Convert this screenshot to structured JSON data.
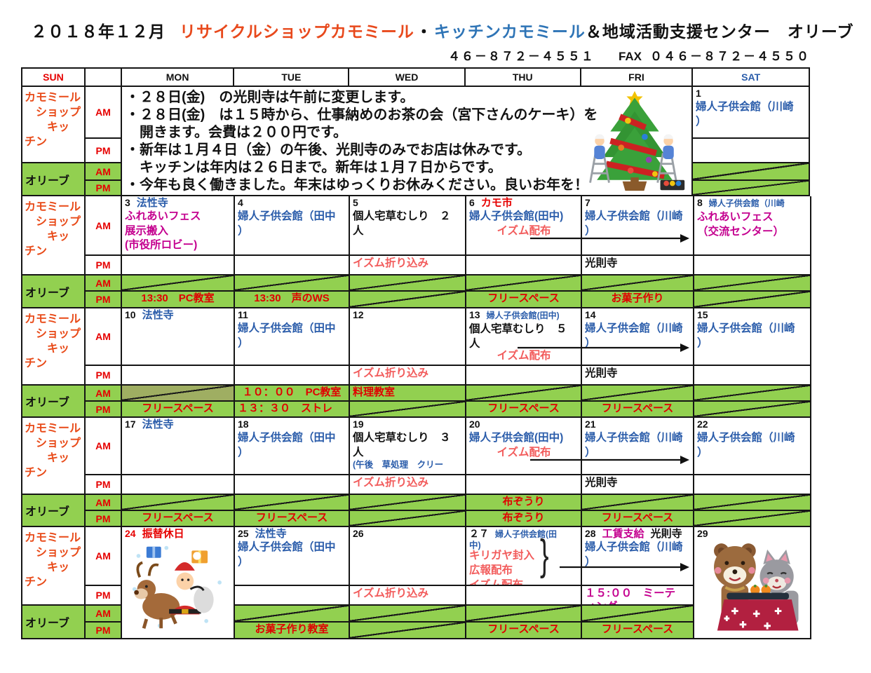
{
  "header": {
    "month_title": "２０１８年１２月",
    "title_recycle": "リサイクルショップカモミール",
    "title_sep": "・",
    "title_kitchen": "キッチンカモミール",
    "title_rest": "＆地域活動支援センター　オリーブ",
    "phone": "４６－８７２－４５５１",
    "fax_label": "FAX",
    "fax_number": "０４６－８７２－４５５０"
  },
  "day_headers": [
    "SUN",
    "",
    "MON",
    "TUE",
    "WED",
    "THU",
    "FRI",
    "SAT"
  ],
  "legend": {
    "shop_lines": [
      "カモミール",
      "　ショップ",
      "　　キッ",
      "チン"
    ],
    "olive": "オリーブ",
    "am": "AM",
    "pm": "PM"
  },
  "colors": {
    "green": "#92d050",
    "green_dark": "#9fae62",
    "red": "#e60000",
    "blue": "#2a5caa",
    "magenta": "#c4008f",
    "pink": "#f25c5c",
    "black": "#111111",
    "orange_label": "#e84a18",
    "title_red": "#e8491c",
    "title_blue": "#2e74b6"
  },
  "weeks": [
    {
      "notice": {
        "lines": [
          "・２８日(金)　の光則寺は午前に変更します。",
          "・２８日(金)　は１５時から、仕事納めのお茶の会（宮下さんのケーキ）を",
          "　開きます。会費は２００円です。",
          "・新年は１月４日（金）の午後、光則寺のみでお店は休みです。",
          "　キッチンは年内は２６日まで。新年は１月７日からです。",
          "・今年も良く働きました。年末はゆっくりお休みください。良いお年を！"
        ],
        "illustration": "christmas-tree-decorating"
      },
      "sat": {
        "num": "1",
        "num_c": "black",
        "notes": [],
        "am": [
          {
            "t": "婦人子供会館（川崎",
            "c": "blue"
          },
          {
            "t": "）",
            "c": "blue"
          }
        ],
        "pm": [],
        "oam": {
          "x": true
        },
        "opm": {
          "x": true
        }
      }
    },
    {
      "days": [
        {
          "num": "3",
          "num_c": "black",
          "notes": [
            {
              "t": "法性寺",
              "c": "blue"
            }
          ],
          "am": [
            {
              "t": "ふれあいフェス",
              "c": "magenta"
            },
            {
              "t": "展示搬入",
              "c": "magenta"
            },
            {
              "t": "(市役所ロビー)",
              "c": "magenta",
              "cls": "clip"
            }
          ],
          "pm": [],
          "oam": {
            "x": true
          },
          "opm": {
            "t": "13:30　PC教室"
          }
        },
        {
          "num": "4",
          "num_c": "black",
          "notes": [],
          "am": [
            {
              "t": "婦人子供会館（田中",
              "c": "blue"
            },
            {
              "t": "）",
              "c": "blue"
            }
          ],
          "pm": [],
          "oam": {
            "x": true
          },
          "opm": {
            "t": "13:30　声のWS"
          }
        },
        {
          "num": "5",
          "num_c": "black",
          "notes": [],
          "am": [
            {
              "t": "個人宅草むしり　２",
              "c": "black"
            },
            {
              "t": "人",
              "c": "black"
            }
          ],
          "pm": [
            {
              "t": "イズム折り込み",
              "c": "pink"
            }
          ],
          "oam": {
            "x": true
          },
          "opm": {
            "x": true
          }
        },
        {
          "num": "6",
          "num_c": "black",
          "notes": [
            {
              "t": "カモ市",
              "c": "red"
            }
          ],
          "am": [
            {
              "t": "婦人子供会館(田中)",
              "c": "blue"
            },
            {
              "t": "イズム配布",
              "c": "pink",
              "cls": "center"
            }
          ],
          "pm": [],
          "oam": {
            "x": true
          },
          "opm": {
            "t": "フリースペース"
          }
        },
        {
          "num": "7",
          "num_c": "black",
          "notes": [],
          "am": [
            {
              "t": "婦人子供会館（川崎",
              "c": "blue"
            },
            {
              "t": "）",
              "c": "blue"
            }
          ],
          "pm": [
            {
              "t": "光則寺",
              "c": "black"
            }
          ],
          "oam": {
            "x": true
          },
          "opm": {
            "t": "お菓子作り"
          }
        },
        {
          "num": "8",
          "num_c": "black",
          "notes": [
            {
              "t": "婦人子供会館（川崎",
              "c": "blue",
              "small": true
            }
          ],
          "am": [
            {
              "t": "ふれあいフェス",
              "c": "magenta"
            },
            {
              "t": "（交流センター）",
              "c": "magenta"
            }
          ],
          "pm": [],
          "oam": {
            "x": true
          },
          "opm": {
            "x": true
          }
        }
      ],
      "arrows": [
        {
          "from": "THU",
          "to": "FRI-SAT-boundary"
        }
      ]
    },
    {
      "days": [
        {
          "num": "10",
          "num_c": "black",
          "notes": [
            {
              "t": "法性寺",
              "c": "blue"
            }
          ],
          "am": [],
          "pm": [],
          "oam": {
            "x": true,
            "dark": true
          },
          "opm": {
            "t": "フリースペース"
          }
        },
        {
          "num": "11",
          "num_c": "black",
          "notes": [],
          "am": [
            {
              "t": "婦人子供会館（田中",
              "c": "blue"
            },
            {
              "t": "）",
              "c": "blue"
            }
          ],
          "pm": [],
          "oam": {
            "t": "１０：００　PC教室"
          },
          "opm": {
            "t": "１３：３０　ストレ",
            "align": "left"
          }
        },
        {
          "num": "12",
          "num_c": "black",
          "notes": [],
          "am": [],
          "pm": [
            {
              "t": "イズム折り込み",
              "c": "pink"
            }
          ],
          "oam": {
            "t": "料理教室",
            "align": "left"
          },
          "opm": {
            "x": true
          }
        },
        {
          "num": "13",
          "num_c": "black",
          "notes": [
            {
              "t": "婦人子供会館(田中)",
              "c": "blue",
              "small": true
            }
          ],
          "am": [
            {
              "t": "個人宅草むしり　５",
              "c": "black"
            },
            {
              "t": "人",
              "c": "black"
            },
            {
              "t": "イズム配布",
              "c": "pink",
              "cls": "clip6"
            }
          ],
          "pm": [],
          "oam": {
            "x": true
          },
          "opm": {
            "t": "フリースペース"
          }
        },
        {
          "num": "14",
          "num_c": "black",
          "notes": [],
          "am": [
            {
              "t": "婦人子供会館（川崎",
              "c": "blue"
            },
            {
              "t": "）",
              "c": "blue"
            }
          ],
          "pm": [
            {
              "t": "光則寺",
              "c": "black"
            }
          ],
          "oam": {
            "x": true
          },
          "opm": {
            "t": "フリースペース"
          }
        },
        {
          "num": "15",
          "num_c": "black",
          "notes": [],
          "am": [
            {
              "t": "婦人子供会館（川崎",
              "c": "blue"
            },
            {
              "t": "）",
              "c": "blue"
            }
          ],
          "pm": [],
          "oam": {
            "x": true
          },
          "opm": {
            "x": true
          }
        }
      ],
      "arrows": [
        {
          "from": "THU",
          "to": "FRI-SAT-boundary"
        }
      ]
    },
    {
      "days": [
        {
          "num": "17",
          "num_c": "black",
          "notes": [
            {
              "t": "法性寺",
              "c": "blue"
            }
          ],
          "am": [],
          "pm": [],
          "oam": {
            "x": true
          },
          "opm": {
            "t": "フリースペース"
          }
        },
        {
          "num": "18",
          "num_c": "black",
          "notes": [],
          "am": [
            {
              "t": "婦人子供会館（田中",
              "c": "blue"
            },
            {
              "t": "）",
              "c": "blue"
            }
          ],
          "pm": [],
          "oam": {
            "x": true
          },
          "opm": {
            "t": "フリースペース"
          }
        },
        {
          "num": "19",
          "num_c": "black",
          "notes": [],
          "am": [
            {
              "t": "個人宅草むしり　３",
              "c": "black"
            },
            {
              "t": "人",
              "c": "black"
            },
            {
              "t": "(午後　草処理　クリー",
              "c": "blue",
              "small": true
            }
          ],
          "pm": [
            {
              "t": "イズム折り込み",
              "c": "pink"
            }
          ],
          "oam": {
            "x": true
          },
          "opm": {
            "x": true
          }
        },
        {
          "num": "20",
          "num_c": "black",
          "notes": [],
          "am": [
            {
              "t": "婦人子供会館(田中)",
              "c": "blue"
            },
            {
              "t": "イズム配布",
              "c": "pink",
              "cls": "center"
            }
          ],
          "pm": [],
          "oam": {
            "t": "布ぞうり"
          },
          "opm": {
            "t": "布ぞうり"
          }
        },
        {
          "num": "21",
          "num_c": "black",
          "notes": [],
          "am": [
            {
              "t": "婦人子供会館（川崎",
              "c": "blue"
            },
            {
              "t": "）",
              "c": "blue"
            }
          ],
          "pm": [
            {
              "t": "光則寺",
              "c": "black"
            }
          ],
          "oam": {
            "x": true
          },
          "opm": {
            "t": "フリースペース"
          }
        },
        {
          "num": "22",
          "num_c": "black",
          "notes": [],
          "am": [
            {
              "t": "婦人子供会館（川崎",
              "c": "blue"
            },
            {
              "t": "）",
              "c": "blue"
            }
          ],
          "pm": [],
          "oam": {
            "x": true
          },
          "opm": {
            "x": true
          }
        }
      ],
      "arrows": [
        {
          "from": "THU",
          "to": "FRI-SAT-boundary"
        }
      ]
    },
    {
      "days": [
        {
          "num": "24",
          "num_c": "red",
          "notes": [
            {
              "t": "振替休日",
              "c": "red"
            }
          ],
          "img": "santa-reindeer"
        },
        {
          "num": "25",
          "num_c": "black",
          "notes": [
            {
              "t": "法性寺",
              "c": "blue"
            }
          ],
          "am": [
            {
              "t": "婦人子供会館（田中",
              "c": "blue"
            },
            {
              "t": "）",
              "c": "blue"
            }
          ],
          "pm": [],
          "oam": {
            "x": true
          },
          "opm": {
            "t": "お菓子作り教室"
          }
        },
        {
          "num": "26",
          "num_c": "black",
          "notes": [],
          "am": [],
          "pm": [
            {
              "t": "イズム折り込み",
              "c": "pink"
            }
          ],
          "oam": {
            "x": true
          },
          "opm": {
            "x": true
          }
        },
        {
          "num": "２７",
          "num_c": "black",
          "notes": [
            {
              "t": "婦人子供会館(田",
              "c": "blue",
              "small": true
            }
          ],
          "am": [
            {
              "t": "中)",
              "c": "blue",
              "cls": "clip10 small"
            },
            {
              "t": "キリガヤ封入",
              "c": "pink"
            },
            {
              "t": "広報配布",
              "c": "pink"
            },
            {
              "t": "イズム配布",
              "c": "pink"
            }
          ],
          "pm": [],
          "oam": {
            "x": true
          },
          "opm": {
            "t": "フリースペース"
          }
        },
        {
          "num": "28",
          "num_c": "black",
          "notes": [
            {
              "t": "工賃支給",
              "c": "magenta"
            },
            {
              "t": "光則寺",
              "c": "black"
            }
          ],
          "am": [
            {
              "t": "婦人子供会館（川崎",
              "c": "blue"
            },
            {
              "t": "）",
              "c": "blue"
            }
          ],
          "pm": [
            {
              "t": "１５:００　ミーテ",
              "c": "magenta"
            },
            {
              "t": "ィング",
              "c": "magenta",
              "cls": "clip8"
            }
          ],
          "oam": {
            "x": true
          },
          "opm": {
            "t": "フリースペース"
          }
        },
        {
          "num": "29",
          "num_c": "black",
          "notes": [],
          "img": "bear-cat-kotatsu"
        }
      ],
      "arrows": [
        {
          "from": "THU-brace",
          "to": "FRI-SAT-boundary"
        }
      ],
      "brace": true
    }
  ]
}
